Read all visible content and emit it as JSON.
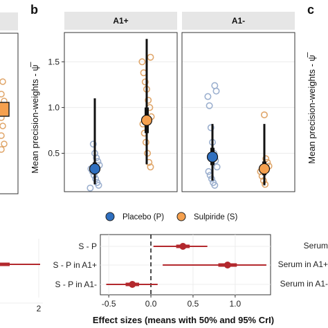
{
  "colors": {
    "placebo": "#2f6fbf",
    "sulpiride": "#f5a04e",
    "strip": "#e6e6e6",
    "effect": "#b3282d",
    "individual": "#9cb0cf",
    "individual_s": "#e0a66a"
  },
  "panel_letters": {
    "b": "b",
    "c": "c"
  },
  "chart_data": [
    {
      "type": "scatter",
      "panel": "b",
      "ylabel": "Mean precision-weights - ψ̅",
      "ylim": [
        0.08,
        1.82
      ],
      "y_ticks": [
        0.5,
        1.0,
        1.5
      ],
      "y_tick_labels": [
        "0.5",
        "1.0",
        "1.5"
      ],
      "facets": [
        "A1+",
        "A1-"
      ],
      "legend": [
        "Placebo (P)",
        "Sulpiride (S)"
      ],
      "legend_position": "bottom",
      "grid": true,
      "series": [
        {
          "name": "Placebo (P)",
          "facet": "A1+",
          "mean": 0.33,
          "ci50": [
            0.27,
            0.4
          ],
          "ci95": [
            0.16,
            1.1
          ],
          "individual": [
            0.12,
            0.15,
            0.18,
            0.22,
            0.26,
            0.3,
            0.33,
            0.37,
            0.41,
            0.45,
            0.5,
            0.6
          ]
        },
        {
          "name": "Sulpiride (S)",
          "facet": "A1+",
          "mean": 0.86,
          "ci50": [
            0.72,
            1.0
          ],
          "ci95": [
            0.38,
            1.75
          ],
          "individual": [
            0.35,
            0.4,
            0.5,
            0.62,
            0.72,
            0.82,
            0.9,
            1.0,
            1.08,
            1.2,
            1.28,
            1.38,
            1.5,
            1.55
          ]
        },
        {
          "name": "Placebo (P)",
          "facet": "A1-",
          "mean": 0.46,
          "ci50": [
            0.37,
            0.56
          ],
          "ci95": [
            0.2,
            0.82
          ],
          "individual": [
            0.15,
            0.18,
            0.22,
            0.26,
            0.3,
            0.35,
            0.42,
            0.5,
            0.62,
            0.78,
            1.02,
            1.12,
            1.18,
            1.24
          ]
        },
        {
          "name": "Sulpiride (S)",
          "facet": "A1-",
          "mean": 0.33,
          "ci50": [
            0.26,
            0.41
          ],
          "ci95": [
            0.15,
            0.82
          ],
          "individual": [
            0.16,
            0.2,
            0.25,
            0.3,
            0.36,
            0.4,
            0.44,
            0.92
          ]
        }
      ]
    },
    {
      "type": "forest",
      "panel": "b",
      "xlabel": "Effect sizes (means with 50% and 95% CrI)",
      "xlim": [
        -0.6,
        1.42
      ],
      "x_ticks": [
        -0.5,
        0.0,
        0.5,
        1.0
      ],
      "x_tick_labels": [
        "-0.5",
        "0.0",
        "0.5",
        "1.0"
      ],
      "reference_line": 0,
      "rows": [
        {
          "label": "S - P",
          "mean": 0.38,
          "ci50": [
            0.3,
            0.46
          ],
          "ci95": [
            0.03,
            0.67
          ]
        },
        {
          "label": "S - P in A1+",
          "mean": 0.91,
          "ci50": [
            0.8,
            1.02
          ],
          "ci95": [
            0.14,
            1.37
          ]
        },
        {
          "label": "S - P in A1-",
          "mean": -0.22,
          "ci50": [
            -0.3,
            -0.14
          ],
          "ci95": [
            -0.53,
            0.08
          ]
        }
      ]
    },
    {
      "type": "forest",
      "panel": "a (partial)",
      "x_ticks": [
        2
      ],
      "x_tick_labels": [
        "2"
      ]
    },
    {
      "type": "forest",
      "panel": "c (partial)",
      "row_labels": [
        "Serum",
        "Serum in A1+",
        "Serum in A1-"
      ]
    },
    {
      "type": "scatter",
      "panel": "c (partial)",
      "ylabel": "Mean precision-weights - ψ̅"
    }
  ]
}
